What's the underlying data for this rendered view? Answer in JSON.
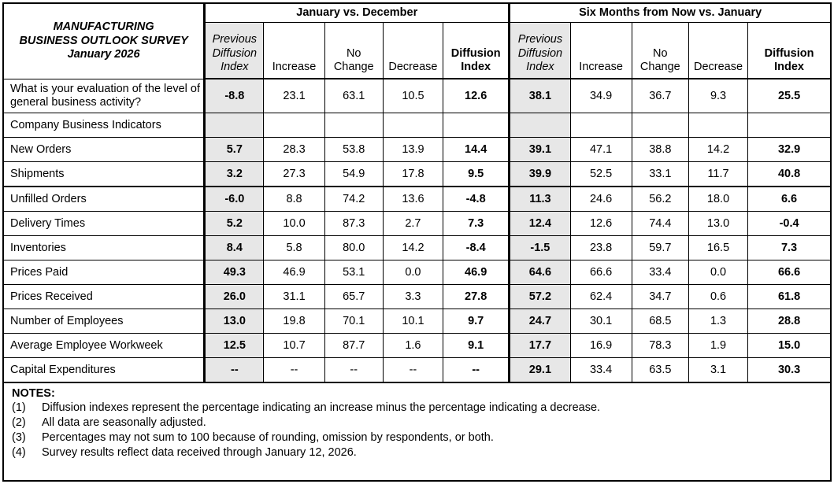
{
  "title": {
    "line1": "MANUFACTURING",
    "line2": "BUSINESS OUTLOOK SURVEY",
    "line3": "January 2026"
  },
  "column_groups": [
    {
      "label": "January vs. December",
      "columns": [
        "Previous Diffusion Index",
        "Increase",
        "No Change",
        "Decrease",
        "Diffusion Index"
      ]
    },
    {
      "label": "Six Months from Now vs. January",
      "columns": [
        "Previous Diffusion Index",
        "Increase",
        "No Change",
        "Decrease",
        "Diffusion Index"
      ]
    }
  ],
  "rows": [
    {
      "label": "What is your evaluation of the level of general business activity?",
      "jan": [
        "-8.8",
        "23.1",
        "63.1",
        "10.5",
        "12.6"
      ],
      "six": [
        "38.1",
        "34.9",
        "36.7",
        "9.3",
        "25.5"
      ],
      "tall": true
    },
    {
      "label": "Company Business Indicators",
      "jan": [
        "",
        "",
        "",
        "",
        ""
      ],
      "six": [
        "",
        "",
        "",
        "",
        ""
      ],
      "section": true
    },
    {
      "label": "New Orders",
      "jan": [
        "5.7",
        "28.3",
        "53.8",
        "13.9",
        "14.4"
      ],
      "six": [
        "39.1",
        "47.1",
        "38.8",
        "14.2",
        "32.9"
      ]
    },
    {
      "label": "Shipments",
      "jan": [
        "3.2",
        "27.3",
        "54.9",
        "17.8",
        "9.5"
      ],
      "six": [
        "39.9",
        "52.5",
        "33.1",
        "11.7",
        "40.8"
      ],
      "thick_bottom": true
    },
    {
      "label": "Unfilled Orders",
      "jan": [
        "-6.0",
        "8.8",
        "74.2",
        "13.6",
        "-4.8"
      ],
      "six": [
        "11.3",
        "24.6",
        "56.2",
        "18.0",
        "6.6"
      ]
    },
    {
      "label": "Delivery Times",
      "jan": [
        "5.2",
        "10.0",
        "87.3",
        "2.7",
        "7.3"
      ],
      "six": [
        "12.4",
        "12.6",
        "74.4",
        "13.0",
        "-0.4"
      ]
    },
    {
      "label": "Inventories",
      "jan": [
        "8.4",
        "5.8",
        "80.0",
        "14.2",
        "-8.4"
      ],
      "six": [
        "-1.5",
        "23.8",
        "59.7",
        "16.5",
        "7.3"
      ]
    },
    {
      "label": "Prices Paid",
      "jan": [
        "49.3",
        "46.9",
        "53.1",
        "0.0",
        "46.9"
      ],
      "six": [
        "64.6",
        "66.6",
        "33.4",
        "0.0",
        "66.6"
      ]
    },
    {
      "label": "Prices Received",
      "jan": [
        "26.0",
        "31.1",
        "65.7",
        "3.3",
        "27.8"
      ],
      "six": [
        "57.2",
        "62.4",
        "34.7",
        "0.6",
        "61.8"
      ]
    },
    {
      "label": "Number of Employees",
      "jan": [
        "13.0",
        "19.8",
        "70.1",
        "10.1",
        "9.7"
      ],
      "six": [
        "24.7",
        "30.1",
        "68.5",
        "1.3",
        "28.8"
      ]
    },
    {
      "label": "Average Employee Workweek",
      "jan": [
        "12.5",
        "10.7",
        "87.7",
        "1.6",
        "9.1"
      ],
      "six": [
        "17.7",
        "16.9",
        "78.3",
        "1.9",
        "15.0"
      ]
    },
    {
      "label": "Capital Expenditures",
      "jan": [
        "--",
        "--",
        "--",
        "--",
        "--"
      ],
      "six": [
        "29.1",
        "33.4",
        "63.5",
        "3.1",
        "30.3"
      ]
    }
  ],
  "notes": {
    "heading": "NOTES:",
    "items": [
      {
        "num": "(1)",
        "text": "Diffusion indexes represent the percentage indicating an increase minus the percentage indicating a decrease."
      },
      {
        "num": "(2)",
        "text": "All data are seasonally adjusted."
      },
      {
        "num": "(3)",
        "text": "Percentages may not sum to 100 because of rounding, omission by respondents, or both."
      },
      {
        "num": "(4)",
        "text": "Survey results reflect data received through January 12, 2026."
      }
    ]
  },
  "colors": {
    "table_border": "#000000",
    "shaded_column": "#e7e7e7",
    "text": "#000000",
    "background": "#ffffff"
  }
}
